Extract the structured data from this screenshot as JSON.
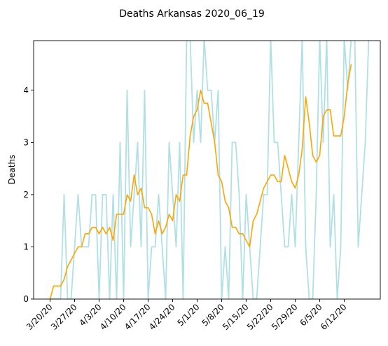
{
  "chart_data": {
    "type": "line",
    "title": "Deaths Arkansas 2020_06_19",
    "xlabel": "",
    "ylabel": "Deaths",
    "ylim": [
      0,
      4.95
    ],
    "y_ticks": [
      0,
      1,
      2,
      3,
      4
    ],
    "x_tick_labels": [
      "3/20/20",
      "3/27/20",
      "4/3/20",
      "4/10/20",
      "4/17/20",
      "4/24/20",
      "5/1/20",
      "5/8/20",
      "5/15/20",
      "5/22/20",
      "5/29/20",
      "6/5/20",
      "6/12/20"
    ],
    "x_start": "3/20/20",
    "grid": false,
    "series": [
      {
        "style": "daily",
        "color": "#b0e0e6",
        "values": [
          0,
          0,
          0,
          0,
          2,
          0,
          0,
          1,
          2,
          1,
          1,
          1,
          2,
          2,
          0,
          2,
          2,
          0,
          2,
          0,
          3,
          0,
          4,
          1,
          2,
          3,
          1,
          4,
          0,
          1,
          1,
          2,
          1,
          0,
          3,
          2,
          1,
          3,
          0,
          5,
          5,
          3,
          4,
          3,
          5,
          4,
          4,
          3,
          4,
          0,
          1,
          0,
          3,
          3,
          2,
          0,
          2,
          1,
          0,
          0,
          1,
          2,
          2,
          5,
          3,
          3,
          2,
          1,
          1,
          2,
          1,
          3,
          5,
          1,
          0,
          0,
          2,
          5,
          3,
          5,
          1,
          2,
          0,
          1,
          5,
          4,
          5,
          5,
          1,
          2,
          3,
          5
        ]
      },
      {
        "style": "moving-average",
        "color": "#ffa500",
        "values": [
          0,
          0.25,
          0.25,
          0.25,
          0.375,
          0.625,
          0.75,
          0.875,
          1,
          1,
          1.25,
          1.25,
          1.375,
          1.375,
          1.25,
          1.375,
          1.25,
          1.375,
          1.125,
          1.625,
          1.625,
          1.625,
          2,
          1.875,
          2.375,
          2,
          2.125,
          1.75,
          1.75,
          1.625,
          1.25,
          1.5,
          1.25,
          1.375,
          1.625,
          1.5,
          2,
          1.875,
          2.375,
          2.375,
          3.125,
          3.5,
          3.625,
          4,
          3.75,
          3.75,
          3.375,
          3,
          2.375,
          2.25,
          1.875,
          1.75,
          1.375,
          1.375,
          1.25,
          1.25,
          1.125,
          1,
          1.5,
          1.625,
          1.875,
          2.125,
          2.25,
          2.375,
          2.375,
          2.25,
          2.25,
          2.75,
          2.5,
          2.25,
          2.125,
          2.375,
          2.875,
          3.875,
          3.375,
          2.75,
          2.625,
          2.75,
          3.5,
          3.625,
          3.625,
          3.125,
          3.125,
          3.125,
          3.5,
          4.125,
          4.5
        ]
      }
    ]
  }
}
